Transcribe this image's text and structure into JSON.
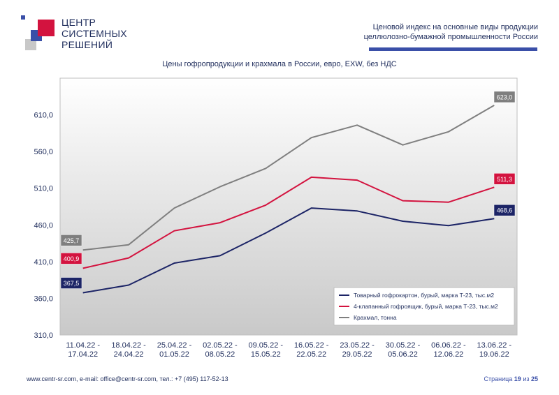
{
  "logo": {
    "line1": "ЦЕНТР",
    "line2": "СИСТЕМНЫХ",
    "line3": "РЕШЕНИЙ"
  },
  "header": {
    "line1": "Ценовой индекс на основные виды продукции",
    "line2": "целлюлозно-бумажной промышленности России"
  },
  "footer": {
    "contacts": "www.centr-sr.com, e-mail: office@centr-sr.com, тел.: +7 (495) 117-52-13",
    "page_prefix": "Страница",
    "page_current": "19",
    "page_sep": "из",
    "page_total": "25"
  },
  "colors": {
    "navy": "#1c2466",
    "red": "#d3133f",
    "gray": "#7f7f7f",
    "accent": "#3a4fa8"
  },
  "chart_data": {
    "type": "line",
    "title": "Цены гофропродукции и крахмала в России, евро, EXW, без НДС",
    "categories": [
      [
        "11.04.22 -",
        "17.04.22"
      ],
      [
        "18.04.22 -",
        "24.04.22"
      ],
      [
        "25.04.22 -",
        "01.05.22"
      ],
      [
        "02.05.22 -",
        "08.05.22"
      ],
      [
        "09.05.22 -",
        "15.05.22"
      ],
      [
        "16.05.22 -",
        "22.05.22"
      ],
      [
        "23.05.22 -",
        "29.05.22"
      ],
      [
        "30.05.22 -",
        "05.06.22"
      ],
      [
        "06.06.22 -",
        "12.06.22"
      ],
      [
        "13.06.22 -",
        "19.06.22"
      ]
    ],
    "ylim": [
      310,
      660
    ],
    "yticks": [
      "310,0",
      "360,0",
      "410,0",
      "460,0",
      "510,0",
      "560,0",
      "610,0"
    ],
    "ytick_values": [
      310,
      360,
      410,
      460,
      510,
      560,
      610
    ],
    "grid": false,
    "legend_position": "bottom-right",
    "series": [
      {
        "name": "Товарный гофрокартон, бурый, марка Т-23, тыс.м2",
        "color": "#1c2466",
        "values": [
          367.5,
          378,
          408,
          418,
          449,
          483,
          479,
          465,
          459,
          468.6
        ],
        "first_label": "367,5",
        "last_label": "468,6"
      },
      {
        "name": "4-клапанный гофроящик, бурый, марка Т-23, тыс.м2",
        "color": "#d3133f",
        "values": [
          400.9,
          415,
          452,
          463,
          487,
          525,
          521,
          493,
          491,
          511.3
        ],
        "first_label": "400,9",
        "last_label": "511,3"
      },
      {
        "name": "Крахмал, тонна",
        "color": "#7f7f7f",
        "values": [
          425.7,
          433,
          483,
          512,
          537,
          579,
          596,
          569,
          587,
          623.0
        ],
        "first_label": "425,7",
        "last_label": "623,0"
      }
    ]
  }
}
